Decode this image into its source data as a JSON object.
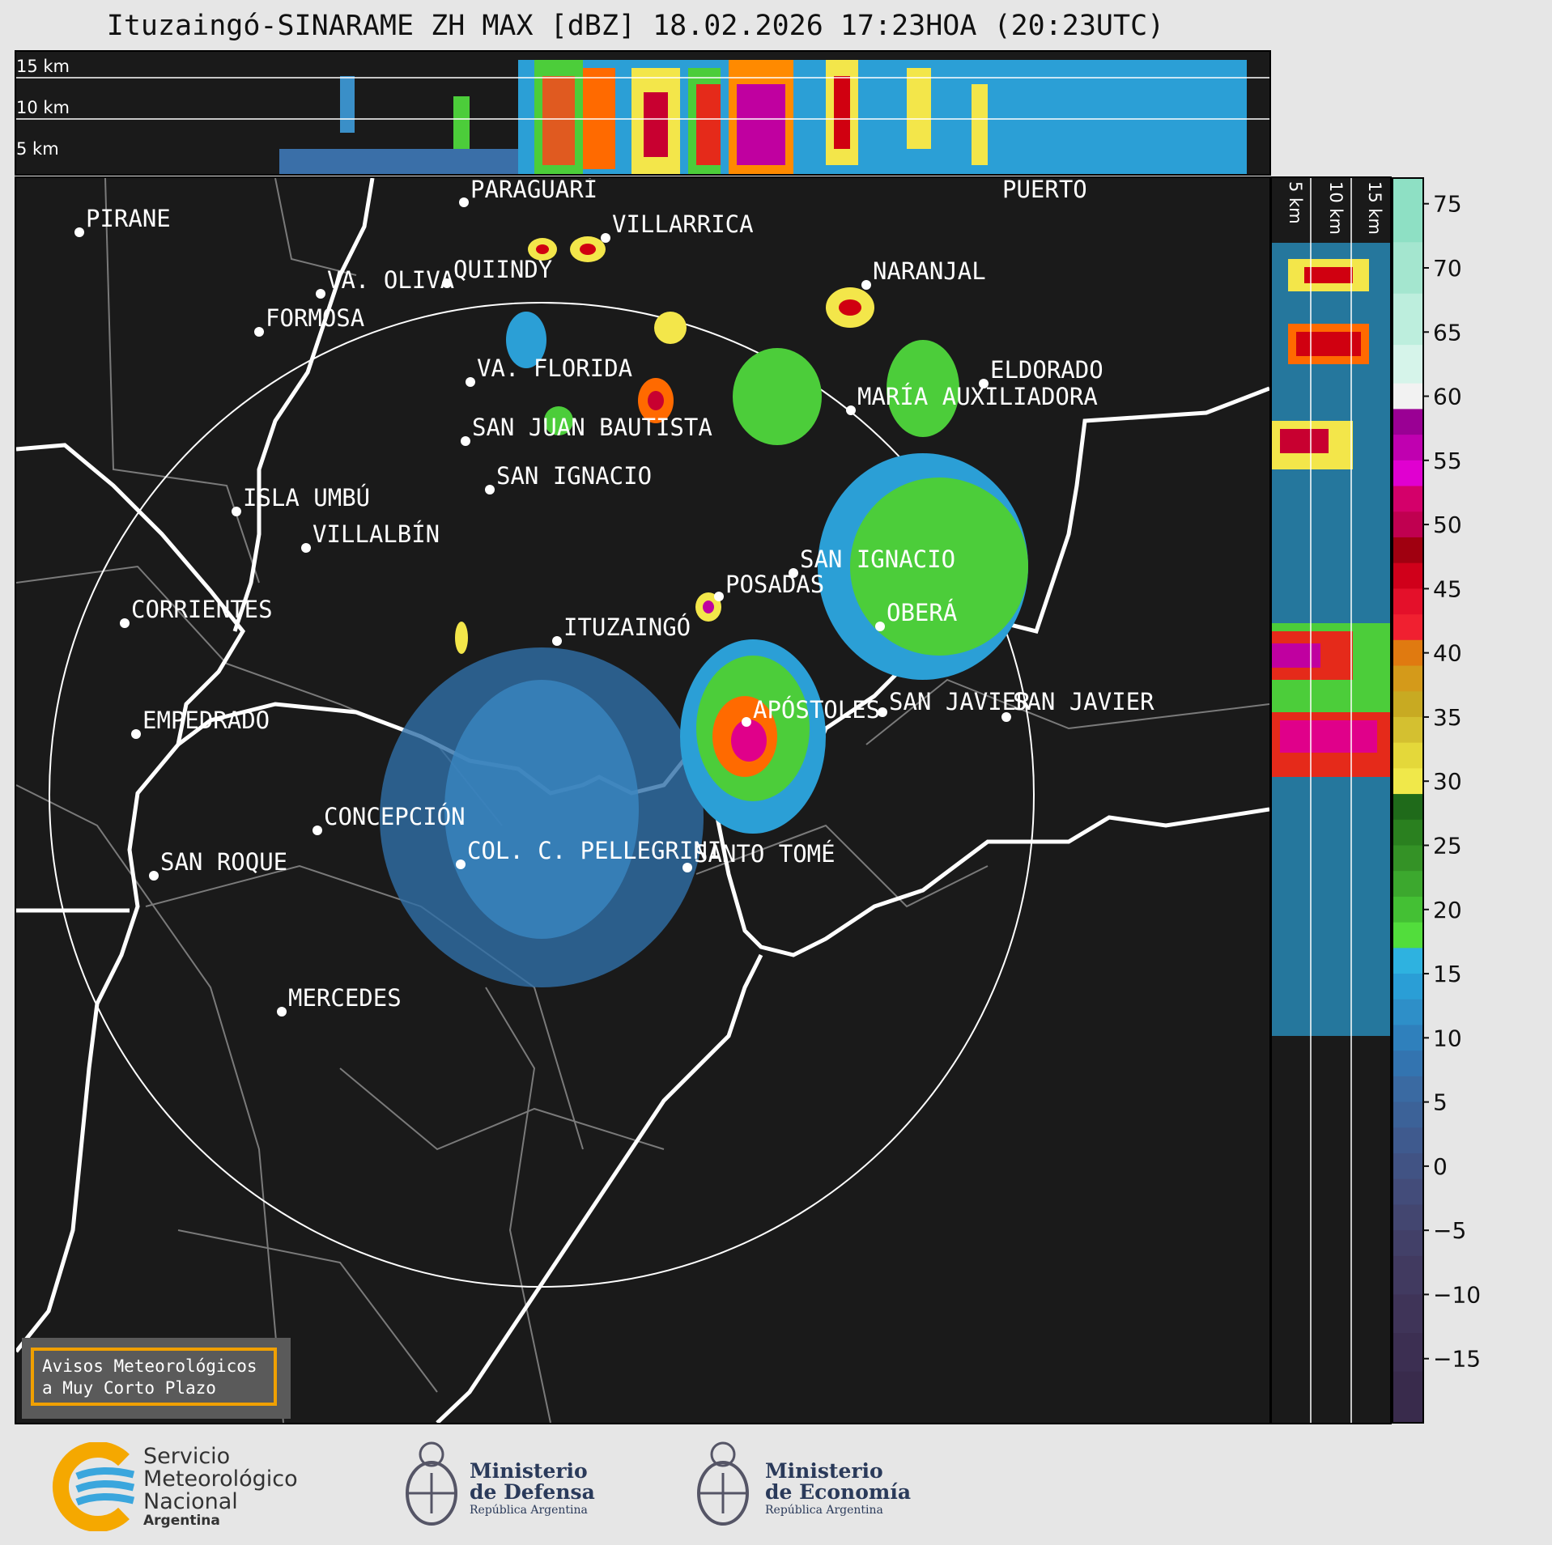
{
  "title": "Ituzaingó-SINARAME ZH MAX [dBZ] 18.02.2026 17:23HOA (20:23UTC)",
  "top_panel": {
    "km_labels": [
      "15 km",
      "10 km",
      "5 km"
    ]
  },
  "side_panel": {
    "km_labels": [
      "5 km",
      "10 km",
      "15 km"
    ]
  },
  "colorbar": {
    "ticks": [
      "75",
      "70",
      "65",
      "60",
      "55",
      "50",
      "45",
      "40",
      "35",
      "30",
      "25",
      "20",
      "15",
      "10",
      "5",
      "0",
      "−5",
      "−10",
      "−15"
    ]
  },
  "cities": [
    {
      "name": "PARAGUARÍ"
    },
    {
      "name": "PIRANE"
    },
    {
      "name": "VILLARRICA"
    },
    {
      "name": "QUIINDY"
    },
    {
      "name": "VA. OLIVA"
    },
    {
      "name": "FORMOSA"
    },
    {
      "name": "NARANJAL"
    },
    {
      "name": "VA. FLORIDA"
    },
    {
      "name": "ELDORADO"
    },
    {
      "name": "MARÍA AUXILIADORA"
    },
    {
      "name": "SAN JUAN BAUTISTA"
    },
    {
      "name": "SAN IGNACIO"
    },
    {
      "name": "ISLA UMBÚ"
    },
    {
      "name": "VILLALBÍN"
    },
    {
      "name": "SAN IGNACIO"
    },
    {
      "name": "POSADAS"
    },
    {
      "name": "CORRIENTES"
    },
    {
      "name": "ITUZAINGÓ"
    },
    {
      "name": "OBERÁ"
    },
    {
      "name": "EMPEDRADO"
    },
    {
      "name": "APÓSTOLES"
    },
    {
      "name": "SAN JAVIER"
    },
    {
      "name": "SAN JAVIER"
    },
    {
      "name": "CONCEPCIÓN"
    },
    {
      "name": "SAN ROQUE"
    },
    {
      "name": "COL. C. PELLEGRINI"
    },
    {
      "name": "SANTO TOMÉ"
    },
    {
      "name": "MERCEDES"
    },
    {
      "name": "PUERTO"
    }
  ],
  "avisos": {
    "line1": "Avisos Meteorológicos",
    "line2": "a Muy Corto Plazo"
  },
  "logos": {
    "smn": {
      "line1": "Servicio",
      "line2": "Meteorológico",
      "line3": "Nacional",
      "line4": "Argentina"
    },
    "defensa": {
      "line1": "Ministerio",
      "line2": "de Defensa",
      "line3": "República Argentina"
    },
    "economia": {
      "line1": "Ministerio",
      "line2": "de Economía",
      "line3": "República Argentina"
    }
  }
}
